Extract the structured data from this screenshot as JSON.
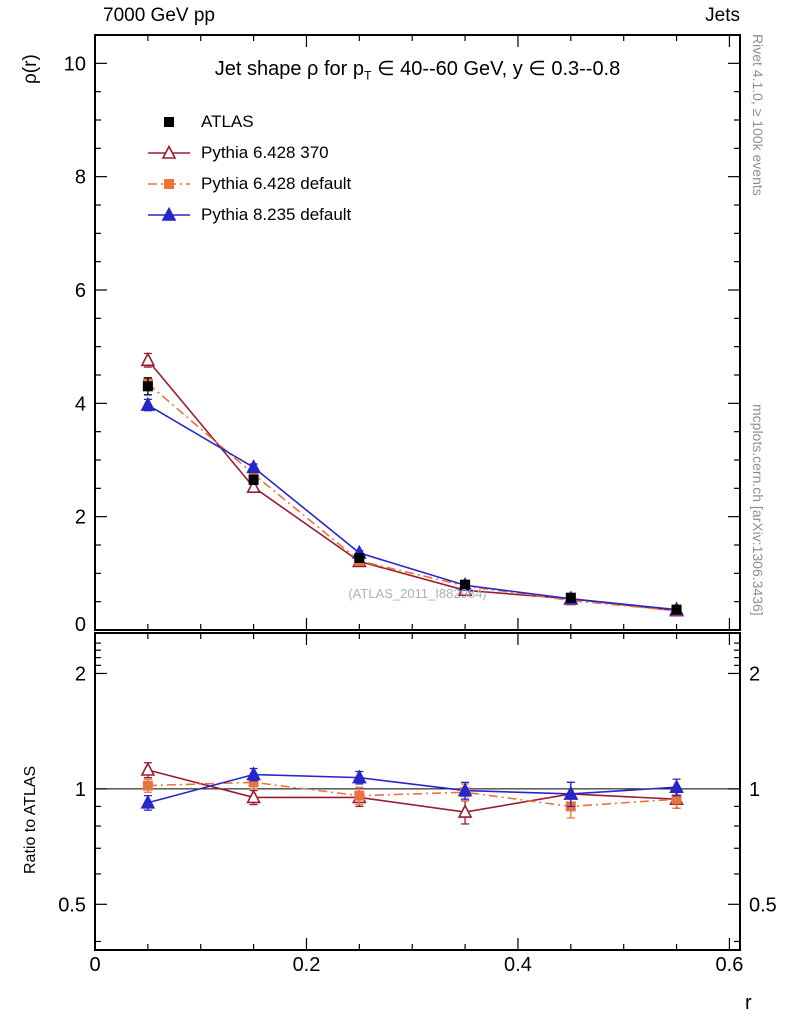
{
  "header": {
    "left": "7000 GeV pp",
    "right": "Jets"
  },
  "sidebar": {
    "rivet": "Rivet 4.1.0, ≥ 100k events",
    "mcplots": "mcplots.cern.ch [arXiv:1306.3436]"
  },
  "watermark": "(ATLAS_2011_I882984)",
  "chart_data": {
    "type": "line",
    "title_parts": [
      {
        "t": "Jet shape ρ for p"
      },
      {
        "t": "T",
        "sub": true
      },
      {
        "t": " ∈ 40--60 GeV, y ∈ 0.3--0.8"
      }
    ],
    "xlabel": "r",
    "ylabel": "ρ(r)",
    "ratio_ylabel": "Ratio to ATLAS",
    "xlim": [
      0,
      0.61
    ],
    "ylim": [
      0,
      10.5
    ],
    "ratio_ylim": [
      0.38,
      2.55
    ],
    "ratio_scale": "log",
    "xticks": {
      "major": [
        0,
        0.2,
        0.4,
        0.6
      ],
      "labels": [
        "0",
        "0.2",
        "0.4",
        "0.6"
      ],
      "minor_step": 0.05
    },
    "yticks": {
      "major": [
        0,
        2,
        4,
        6,
        8,
        10
      ],
      "labels": [
        "0",
        "2",
        "4",
        "6",
        "8",
        "10"
      ],
      "minor_step": 0.5
    },
    "ratio_ticks": {
      "major": [
        0.5,
        1,
        2
      ],
      "labels": [
        "0.5",
        "1",
        "2"
      ],
      "minor": [
        0.4,
        0.6,
        0.7,
        0.8,
        0.9,
        2.1,
        2.2,
        2.3,
        2.4
      ]
    },
    "x": [
      0.05,
      0.15,
      0.25,
      0.35,
      0.45,
      0.55
    ],
    "series": [
      {
        "name": "ATLAS",
        "color": "#000000",
        "marker": "square-filled",
        "line": "none",
        "values": [
          4.3,
          2.65,
          1.27,
          0.8,
          0.57,
          0.36
        ],
        "errors": [
          0.15,
          0.08,
          0.05,
          0.04,
          0.03,
          0.02
        ]
      },
      {
        "name": "Pythia 6.428 370",
        "color": "#9b1c31",
        "marker": "triangle-open",
        "line": "solid",
        "values": [
          4.76,
          2.52,
          1.21,
          0.7,
          0.55,
          0.34
        ],
        "errors": [
          0.12,
          0.07,
          0.05,
          0.04,
          0.03,
          0.02
        ],
        "ratio": [
          1.12,
          0.95,
          0.95,
          0.87,
          0.97,
          0.94
        ],
        "ratio_errors": [
          0.05,
          0.04,
          0.05,
          0.06,
          0.07,
          0.05
        ]
      },
      {
        "name": "Pythia 6.428 default",
        "color": "#e8743b",
        "marker": "square-filled",
        "line": "dashdot",
        "values": [
          4.35,
          2.75,
          1.22,
          0.78,
          0.52,
          0.34
        ],
        "errors": [
          0.1,
          0.06,
          0.04,
          0.03,
          0.03,
          0.02
        ],
        "ratio": [
          1.02,
          1.04,
          0.96,
          0.98,
          0.9,
          0.94
        ],
        "ratio_errors": [
          0.04,
          0.04,
          0.05,
          0.05,
          0.06,
          0.05
        ]
      },
      {
        "name": "Pythia 8.235 default",
        "color": "#2727c8",
        "marker": "triangle-filled",
        "line": "solid",
        "values": [
          3.97,
          2.87,
          1.36,
          0.79,
          0.55,
          0.36
        ],
        "errors": [
          0.1,
          0.06,
          0.04,
          0.03,
          0.03,
          0.02
        ],
        "ratio": [
          0.92,
          1.09,
          1.07,
          0.99,
          0.97,
          1.01
        ],
        "ratio_errors": [
          0.04,
          0.04,
          0.04,
          0.05,
          0.07,
          0.05
        ]
      }
    ]
  }
}
